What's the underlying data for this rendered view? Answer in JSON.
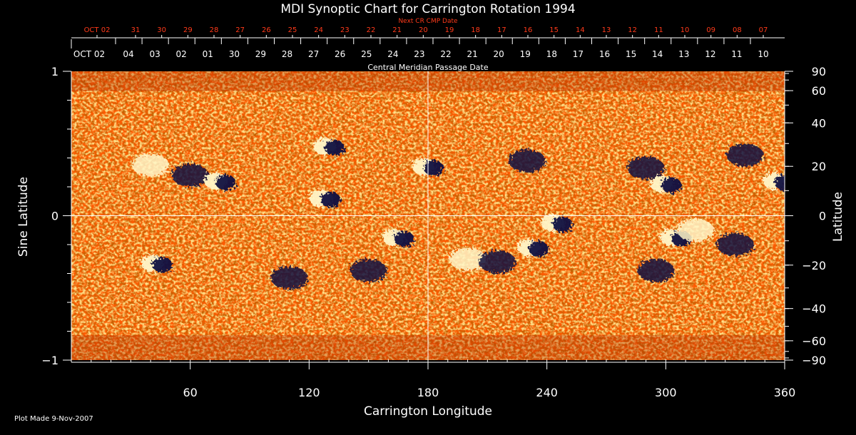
{
  "chart_data": {
    "type": "heatmap",
    "title": "MDI Synoptic Chart for Carrington Rotation 1994",
    "xlabel": "Carrington Longitude",
    "ylabel_left": "Sine Latitude",
    "ylabel_right": "Latitude",
    "xlim": [
      0,
      360
    ],
    "ylim": [
      -1,
      1
    ],
    "x_ticks": [
      60,
      120,
      180,
      240,
      300,
      360
    ],
    "y_ticks_left": [
      {
        "value": 1,
        "label": "1"
      },
      {
        "value": 0,
        "label": "0"
      },
      {
        "value": -1,
        "label": "−1"
      }
    ],
    "y_ticks_right": [
      90,
      60,
      40,
      20,
      0,
      -20,
      -40,
      -60,
      -90
    ],
    "top_axis": {
      "label": "Central Meridian Passage Date",
      "dates": [
        "OCT 02",
        "04",
        "03",
        "02",
        "01",
        "30",
        "29",
        "28",
        "27",
        "26",
        "25",
        "24",
        "23",
        "22",
        "21",
        "20",
        "19",
        "18",
        "17",
        "16",
        "15",
        "14",
        "13",
        "12",
        "11",
        "10"
      ]
    },
    "next_cr_axis": {
      "label": "Next CR CMP Date",
      "dates": [
        "OCT 02",
        "31",
        "30",
        "29",
        "28",
        "27",
        "26",
        "25",
        "24",
        "23",
        "22",
        "21",
        "20",
        "19",
        "18",
        "17",
        "16",
        "15",
        "14",
        "13",
        "12",
        "11",
        "10",
        "09",
        "08",
        "07"
      ]
    },
    "crosshair": {
      "longitude": 180,
      "sine_latitude": 0
    },
    "colors": {
      "background": "#ff5a00",
      "positive": "#fff6c8",
      "negative": "#101040",
      "grid": "#ffffff",
      "next_cr": "#ff3a1a"
    },
    "regions": [
      {
        "lon": 40,
        "sinlat": 0.35,
        "polarity": "positive"
      },
      {
        "lon": 60,
        "sinlat": 0.28,
        "polarity": "negative"
      },
      {
        "lon": 75,
        "sinlat": 0.24,
        "polarity": "mixed"
      },
      {
        "lon": 130,
        "sinlat": 0.48,
        "polarity": "mixed"
      },
      {
        "lon": 128,
        "sinlat": 0.12,
        "polarity": "mixed"
      },
      {
        "lon": 180,
        "sinlat": 0.34,
        "polarity": "mixed"
      },
      {
        "lon": 230,
        "sinlat": 0.38,
        "polarity": "negative"
      },
      {
        "lon": 290,
        "sinlat": 0.33,
        "polarity": "negative"
      },
      {
        "lon": 300,
        "sinlat": 0.22,
        "polarity": "mixed"
      },
      {
        "lon": 340,
        "sinlat": 0.42,
        "polarity": "negative"
      },
      {
        "lon": 357,
        "sinlat": 0.24,
        "polarity": "mixed"
      },
      {
        "lon": 43,
        "sinlat": -0.33,
        "polarity": "mixed"
      },
      {
        "lon": 110,
        "sinlat": -0.43,
        "polarity": "negative"
      },
      {
        "lon": 150,
        "sinlat": -0.38,
        "polarity": "negative"
      },
      {
        "lon": 165,
        "sinlat": -0.15,
        "polarity": "mixed"
      },
      {
        "lon": 200,
        "sinlat": -0.3,
        "polarity": "positive"
      },
      {
        "lon": 215,
        "sinlat": -0.32,
        "polarity": "negative"
      },
      {
        "lon": 233,
        "sinlat": -0.22,
        "polarity": "mixed"
      },
      {
        "lon": 245,
        "sinlat": -0.05,
        "polarity": "mixed"
      },
      {
        "lon": 305,
        "sinlat": -0.15,
        "polarity": "mixed"
      },
      {
        "lon": 315,
        "sinlat": -0.1,
        "polarity": "positive"
      },
      {
        "lon": 295,
        "sinlat": -0.38,
        "polarity": "negative"
      },
      {
        "lon": 335,
        "sinlat": -0.2,
        "polarity": "negative"
      }
    ]
  },
  "footer": {
    "plot_made": "Plot Made  9-Nov-2007"
  }
}
